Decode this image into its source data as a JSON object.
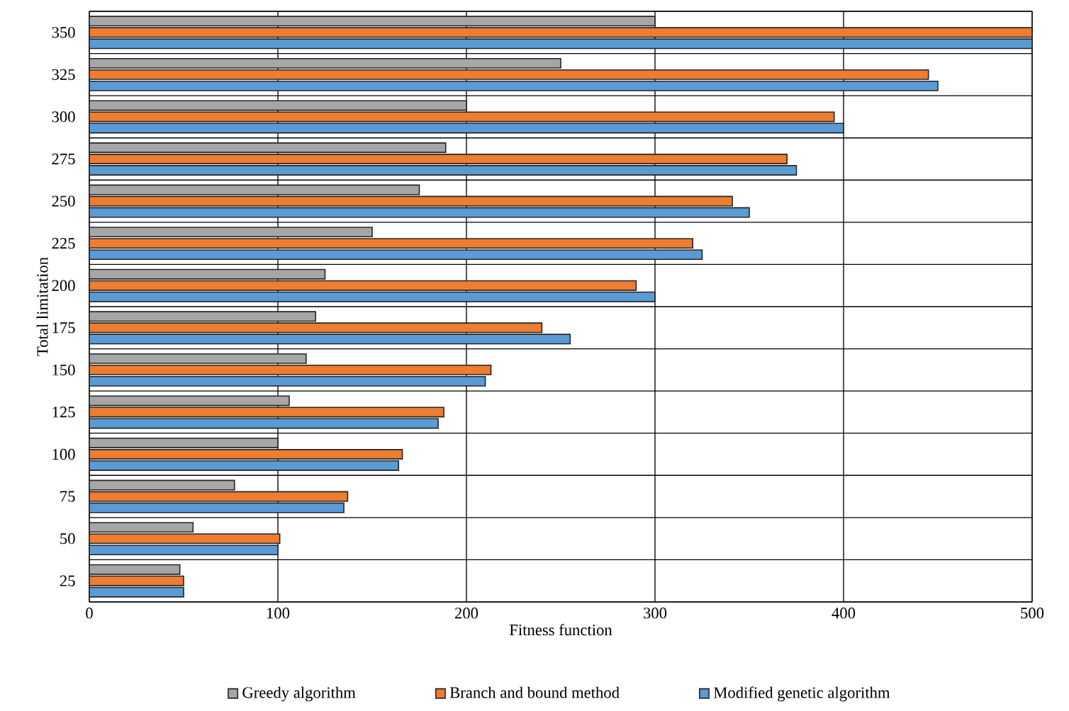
{
  "chart_data": {
    "type": "bar",
    "orientation": "horizontal",
    "xlabel": "Fitness function",
    "ylabel": "Total limitation",
    "categories": [
      "350",
      "325",
      "300",
      "275",
      "250",
      "225",
      "200",
      "175",
      "150",
      "125",
      "100",
      "75",
      "50",
      "25"
    ],
    "series": [
      {
        "name": "Greedy algorithm",
        "color": "#a6a6a6",
        "values": [
          300,
          250,
          200,
          189,
          175,
          150,
          125,
          120,
          115,
          106,
          100,
          77,
          55,
          48
        ]
      },
      {
        "name": "Branch and bound method",
        "color": "#ed7d31",
        "values": [
          500,
          445,
          395,
          370,
          341,
          320,
          290,
          240,
          213,
          188,
          166,
          137,
          101,
          50
        ]
      },
      {
        "name": "Modified genetic algorithm",
        "color": "#5b9bd5",
        "values": [
          500,
          450,
          400,
          375,
          350,
          325,
          300,
          255,
          210,
          185,
          164,
          135,
          100,
          50
        ]
      }
    ],
    "xlim": [
      0,
      500
    ],
    "xticks": [
      0,
      100,
      200,
      300,
      400,
      500
    ],
    "grid": true,
    "legend": "bottom"
  }
}
